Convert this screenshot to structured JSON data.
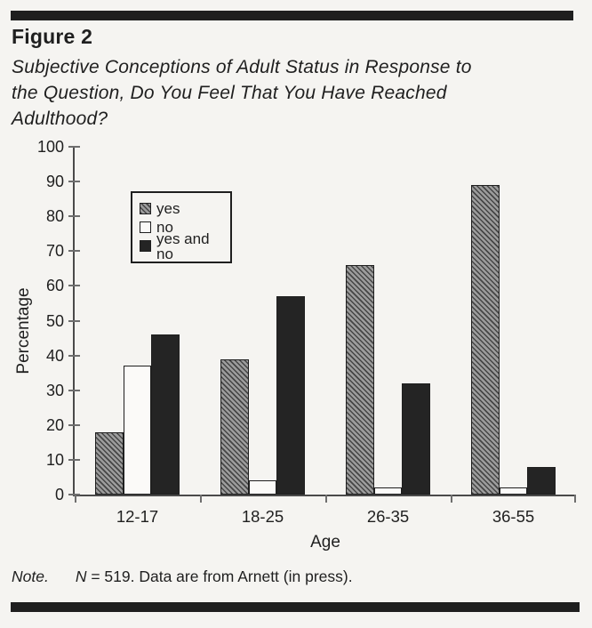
{
  "figure": {
    "label": "Figure 2",
    "title_lines": [
      "Subjective Conceptions of Adult Status in Response to",
      "the Question, Do You Feel That You Have Reached",
      "Adulthood?"
    ]
  },
  "note": {
    "label": "Note.",
    "n_var": "N",
    "rest": "= 519. Data are from Arnett (in press)."
  },
  "chart_data": {
    "type": "bar",
    "categories": [
      "12-17",
      "18-25",
      "26-35",
      "36-55"
    ],
    "series": [
      {
        "name": "yes",
        "style": "hatched",
        "values": [
          18,
          39,
          66,
          89
        ]
      },
      {
        "name": "no",
        "style": "white",
        "values": [
          37,
          4,
          2,
          2
        ]
      },
      {
        "name": "yes and no",
        "style": "black",
        "values": [
          46,
          57,
          32,
          8
        ]
      }
    ],
    "xlabel": "Age",
    "ylabel": "Percentage",
    "ylim": [
      0,
      100
    ],
    "ytick_step": 10,
    "grid": "off",
    "legend_position": "upper-left-inside"
  },
  "colors": {
    "paper": "#f5f4f1",
    "ink": "#1f1f1f",
    "axis": "#4a4a4a",
    "tick": "#6e6e6e",
    "bar_black": "#242424",
    "hatch_dark": "#454545",
    "hatch_light": "#9c9c9c"
  }
}
